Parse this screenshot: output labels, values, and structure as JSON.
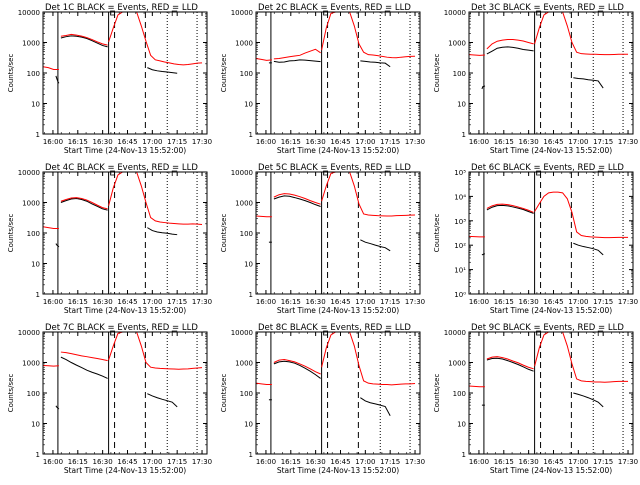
{
  "colors": {
    "events": "#000000",
    "lld": "#ff0000",
    "axes": "#000000",
    "background": "#ffffff"
  },
  "shared": {
    "ylabel": "Counts/sec",
    "xlabel": "Start Time (24-Nov-13 15:52:00)",
    "xticks": [
      "16:00",
      "16:15",
      "16:30",
      "16:45",
      "17:00",
      "17:15",
      "17:30"
    ]
  },
  "chart_data": [
    {
      "type": "line",
      "title": "Det 1C BLACK = Events, RED = LLD",
      "scale": "log",
      "ylim": [
        1,
        10000
      ],
      "yticks": [
        "1",
        "10",
        "100",
        "1000",
        "10000"
      ],
      "series": [
        {
          "values": [
            [
              16.5,
              [
                80,
                64,
                52,
                46
              ]
            ],
            [
              1.0,
              [
                1400,
                1550,
                1650,
                1600,
                1500,
                1350,
                1150,
                960,
                800,
                720
              ]
            ],
            [
              1.0,
              [
                150,
                128,
                118,
                112,
                108,
                103,
                98
              ]
            ]
          ]
        },
        {
          "values": [
            [
              16.5,
              [
                160,
                150,
                130,
                130
              ]
            ],
            [
              1.0,
              [
                1600,
                1700,
                1850,
                1750,
                1620,
                1450,
                1250,
                1050,
                900,
                820
              ]
            ],
            [
              1.05,
              [
                1050,
                3000,
                8000,
                10000,
                10000,
                10000,
                10000,
                3500,
                1100,
                380,
                270,
                250,
                230,
                215,
                200,
                190,
                185,
                190,
                200,
                210,
                215
              ]
            ]
          ]
        }
      ]
    },
    {
      "type": "line",
      "title": "Det 2C BLACK = Events, RED = LLD",
      "scale": "log",
      "ylim": [
        1,
        10000
      ],
      "yticks": [
        "1",
        "10",
        "100",
        "1000",
        "10000"
      ],
      "series": [
        {
          "values": [
            [
              16.75,
              [
                215,
                215,
                215,
                215
              ]
            ],
            [
              1.0,
              [
                240,
                225,
                230,
                250,
                255,
                270,
                265,
                255,
                245,
                235
              ]
            ],
            [
              1.0,
              [
                250,
                240,
                230,
                225,
                215,
                210,
                160
              ]
            ]
          ]
        },
        {
          "values": [
            [
              16.5,
              [
                300,
                280,
                260,
                270
              ]
            ],
            [
              1.0,
              [
                290,
                300,
                320,
                340,
                360,
                380,
                450,
                520,
                600,
                460
              ]
            ],
            [
              1.05,
              [
                560,
                3000,
                9000,
                10000,
                10000,
                10000,
                10000,
                3500,
                900,
                480,
                400,
                390,
                370,
                350,
                330,
                320,
                315,
                330,
                340,
                350,
                355
              ]
            ]
          ]
        }
      ]
    },
    {
      "type": "line",
      "title": "Det 3C BLACK = Events, RED = LLD",
      "scale": "log",
      "ylim": [
        1,
        10000
      ],
      "yticks": [
        "1",
        "10",
        "100",
        "1000",
        "10000"
      ],
      "series": [
        {
          "values": [
            [
              16.75,
              [
                30,
                36,
                36,
                38
              ]
            ],
            [
              1.0,
              [
                420,
                520,
                650,
                700,
                720,
                690,
                650,
                590,
                560,
                530
              ]
            ],
            [
              1.0,
              [
                70,
                66,
                64,
                60,
                58,
                55,
                32
              ]
            ]
          ]
        },
        {
          "values": [
            [
              16.5,
              [
                400,
                390,
                380,
                390
              ]
            ],
            [
              1.0,
              [
                620,
                900,
                1100,
                1200,
                1250,
                1250,
                1200,
                1120,
                1000,
                900
              ]
            ],
            [
              1.05,
              [
                900,
                3000,
                8000,
                10000,
                10000,
                10000,
                10000,
                3500,
                1000,
                480,
                430,
                420,
                410,
                410,
                405,
                400,
                400,
                405,
                410,
                410,
                410
              ]
            ]
          ]
        }
      ]
    },
    {
      "type": "line",
      "title": "Det 4C BLACK = Events, RED = LLD",
      "scale": "log",
      "ylim": [
        1,
        10000
      ],
      "yticks": [
        "1",
        "10",
        "100",
        "1000",
        "10000"
      ],
      "series": [
        {
          "values": [
            [
              16.5,
              [
                45,
                40,
                38,
                35
              ]
            ],
            [
              1.0,
              [
                1000,
                1150,
                1300,
                1350,
                1250,
                1100,
                900,
                750,
                620,
                560
              ]
            ],
            [
              1.0,
              [
                150,
                120,
                108,
                102,
                98,
                92,
                88
              ]
            ]
          ]
        },
        {
          "values": [
            [
              16.5,
              [
                160,
                150,
                140,
                140
              ]
            ],
            [
              1.0,
              [
                1100,
                1250,
                1400,
                1450,
                1350,
                1200,
                1000,
                820,
                680,
                620
              ]
            ],
            [
              1.05,
              [
                780,
                3000,
                8000,
                10000,
                10000,
                10000,
                10000,
                3500,
                1000,
                320,
                250,
                230,
                220,
                210,
                205,
                200,
                195,
                195,
                200,
                195,
                190
              ]
            ]
          ]
        }
      ]
    },
    {
      "type": "line",
      "title": "Det 5C BLACK = Events, RED = LLD",
      "scale": "log",
      "ylim": [
        1,
        10000
      ],
      "yticks": [
        "1",
        "10",
        "100",
        "1000",
        "10000"
      ],
      "series": [
        {
          "values": [
            [
              16.75,
              [
                50,
                50,
                50,
                50
              ]
            ],
            [
              1.0,
              [
                1300,
                1500,
                1650,
                1600,
                1450,
                1300,
                1150,
                1000,
                850,
                740
              ]
            ],
            [
              1.0,
              [
                60,
                50,
                45,
                40,
                36,
                33,
                26
              ]
            ]
          ]
        },
        {
          "values": [
            [
              16.5,
              [
                360,
                350,
                340,
                340
              ]
            ],
            [
              1.0,
              [
                1500,
                1800,
                1950,
                1900,
                1750,
                1550,
                1350,
                1150,
                1000,
                880
              ]
            ],
            [
              1.05,
              [
                1100,
                3500,
                9000,
                10000,
                10000,
                10000,
                10000,
                3500,
                900,
                420,
                390,
                380,
                370,
                365,
                360,
                360,
                370,
                375,
                380,
                385,
                390
              ]
            ]
          ]
        }
      ]
    },
    {
      "type": "line",
      "title": "Det 6C BLACK = Events, RED = LLD",
      "scale": "log",
      "ylim": [
        1,
        100000
      ],
      "yticks": [
        "10⁰",
        "10¹",
        "10²",
        "10³",
        "10⁴",
        "10⁵"
      ],
      "series": [
        {
          "values": [
            [
              16.75,
              [
                40,
                42,
                44,
                44
              ]
            ],
            [
              1.0,
              [
                2800,
                3600,
                4200,
                4300,
                4100,
                3700,
                3300,
                2900,
                2400,
                2000
              ]
            ],
            [
              1.0,
              [
                120,
                100,
                88,
                80,
                72,
                62,
                40
              ]
            ]
          ]
        },
        {
          "values": [
            [
              16.5,
              [
                230,
                225,
                220,
                220
              ]
            ],
            [
              1.0,
              [
                3200,
                4100,
                4700,
                4800,
                4600,
                4200,
                3700,
                3200,
                2700,
                2200
              ]
            ],
            [
              1.05,
              [
                2400,
                5000,
                10000,
                14000,
                15000,
                15000,
                14000,
                8000,
                2200,
                350,
                250,
                230,
                220,
                215,
                210,
                205,
                205,
                208,
                210,
                210,
                210
              ]
            ]
          ]
        }
      ]
    },
    {
      "type": "line",
      "title": "Det 7C BLACK = Events, RED = LLD",
      "scale": "log",
      "ylim": [
        1,
        10000
      ],
      "yticks": [
        "1",
        "10",
        "100",
        "1000",
        "10000"
      ],
      "series": [
        {
          "values": [
            [
              16.5,
              [
                38,
                34,
                32,
                30
              ]
            ],
            [
              1.0,
              [
                1500,
                1250,
                1000,
                820,
                680,
                560,
                480,
                420,
                360,
                300
              ]
            ],
            [
              1.0,
              [
                95,
                80,
                70,
                62,
                56,
                50,
                35
              ]
            ]
          ]
        },
        {
          "values": [
            [
              16.5,
              [
                800,
                780,
                760,
                780
              ]
            ],
            [
              1.0,
              [
                2200,
                2100,
                1950,
                1800,
                1650,
                1550,
                1450,
                1350,
                1250,
                1150
              ]
            ],
            [
              1.05,
              [
                1200,
                3500,
                9000,
                10000,
                10000,
                10000,
                10000,
                3500,
                1000,
                700,
                660,
                640,
                630,
                620,
                610,
                600,
                610,
                620,
                640,
                660,
                680
              ]
            ]
          ]
        }
      ]
    },
    {
      "type": "line",
      "title": "Det 8C BLACK = Events, RED = LLD",
      "scale": "log",
      "ylim": [
        1,
        10000
      ],
      "yticks": [
        "1",
        "10",
        "100",
        "1000",
        "10000"
      ],
      "series": [
        {
          "values": [
            [
              16.75,
              [
                60,
                60,
                60,
                60
              ]
            ],
            [
              1.0,
              [
                900,
                1050,
                1100,
                1050,
                950,
                800,
                650,
                520,
                400,
                300
              ]
            ],
            [
              1.0,
              [
                70,
                55,
                48,
                44,
                40,
                36,
                18
              ]
            ]
          ]
        },
        {
          "values": [
            [
              16.5,
              [
                210,
                200,
                190,
                190
              ]
            ],
            [
              1.0,
              [
                1000,
                1200,
                1250,
                1150,
                1050,
                900,
                760,
                620,
                500,
                420
              ]
            ],
            [
              1.05,
              [
                700,
                3000,
                8000,
                10000,
                10000,
                10000,
                10000,
                3500,
                800,
                250,
                210,
                200,
                195,
                190,
                190,
                185,
                190,
                195,
                200,
                200,
                205
              ]
            ]
          ]
        }
      ]
    },
    {
      "type": "line",
      "title": "Det 9C BLACK = Events, RED = LLD",
      "scale": "log",
      "ylim": [
        1,
        10000
      ],
      "yticks": [
        "1",
        "10",
        "100",
        "1000",
        "10000"
      ],
      "series": [
        {
          "values": [
            [
              16.75,
              [
                40,
                40,
                40,
                40
              ]
            ],
            [
              1.0,
              [
                1200,
                1350,
                1380,
                1300,
                1150,
                1000,
                860,
                720,
                600,
                520
              ]
            ],
            [
              1.0,
              [
                100,
                90,
                80,
                70,
                60,
                50,
                35
              ]
            ]
          ]
        },
        {
          "values": [
            [
              16.5,
              [
                170,
                165,
                160,
                160
              ]
            ],
            [
              1.0,
              [
                1300,
                1500,
                1550,
                1450,
                1300,
                1120,
                980,
                820,
                700,
                620
              ]
            ],
            [
              1.05,
              [
                750,
                3000,
                8000,
                10000,
                10000,
                10000,
                10000,
                3500,
                900,
                290,
                250,
                240,
                235,
                230,
                230,
                225,
                230,
                235,
                240,
                240,
                240
              ]
            ]
          ]
        }
      ]
    }
  ]
}
